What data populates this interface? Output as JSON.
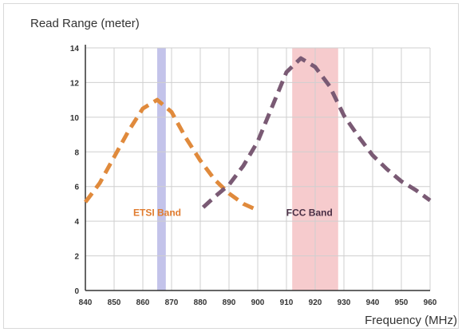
{
  "chart_data": {
    "type": "line",
    "ylabel": "Read Range  (meter)",
    "xlabel": "Frequency (MHz)",
    "xlim": [
      840,
      960
    ],
    "ylim": [
      0,
      14
    ],
    "x_ticks": [
      840,
      850,
      860,
      870,
      880,
      890,
      900,
      910,
      920,
      930,
      940,
      950,
      960
    ],
    "y_ticks": [
      0,
      2,
      4,
      6,
      8,
      10,
      12,
      14
    ],
    "grid": true,
    "bands": [
      {
        "name": "ETSI Band",
        "x_start": 865,
        "x_end": 868,
        "color": "#b9b9e6",
        "label_x": 865,
        "label_y": 4.3,
        "label_color": "#e07b2e"
      },
      {
        "name": "FCC Band",
        "x_start": 912,
        "x_end": 928,
        "color": "#f5c2c4",
        "label_x": 918,
        "label_y": 4.3,
        "label_color": "#4a2f45"
      }
    ],
    "series": [
      {
        "color": "#e08a3c",
        "x": [
          840,
          845,
          850,
          855,
          860,
          865,
          870,
          875,
          880,
          885,
          890,
          895,
          899
        ],
        "y": [
          5.1,
          6.2,
          7.7,
          9.2,
          10.5,
          11.0,
          10.3,
          8.8,
          7.5,
          6.4,
          5.6,
          5.0,
          4.7
        ]
      },
      {
        "color": "#7a5a74",
        "x": [
          881,
          885,
          890,
          895,
          900,
          905,
          910,
          915,
          920,
          925,
          930,
          935,
          940,
          945,
          950,
          955,
          960
        ],
        "y": [
          4.8,
          5.4,
          6.1,
          7.2,
          8.6,
          10.6,
          12.6,
          13.4,
          12.9,
          11.8,
          10.1,
          8.9,
          7.8,
          7.0,
          6.3,
          5.8,
          5.2
        ]
      }
    ]
  }
}
